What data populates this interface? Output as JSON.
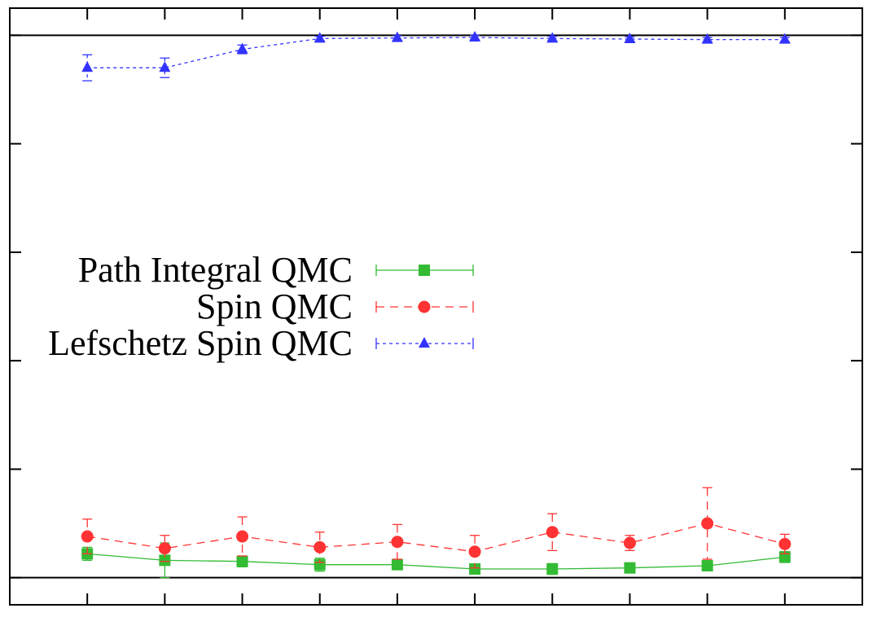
{
  "chart_data": {
    "type": "line",
    "title": "",
    "xlabel": "",
    "ylabel": "",
    "grid": false,
    "x_tick_count": 10,
    "y_tick_count": 6,
    "xlim": [
      0,
      11
    ],
    "ylim": [
      -0.25,
      5.25
    ],
    "x": [
      1,
      2,
      3,
      4,
      5,
      6,
      7,
      8,
      9,
      10
    ],
    "reference_lines": [
      0,
      5
    ],
    "legend_position": "center-left",
    "series": [
      {
        "name": "Path Integral QMC",
        "color": "#33bb33",
        "marker": "square",
        "line_style": "solid",
        "values": [
          0.22,
          0.16,
          0.15,
          0.12,
          0.12,
          0.08,
          0.08,
          0.09,
          0.11,
          0.19
        ],
        "errors": [
          0.06,
          0.16,
          0.05,
          0.06,
          0.04,
          0.03,
          0.05,
          0.03,
          0.03,
          0.05
        ]
      },
      {
        "name": "Spin QMC",
        "color": "#ff3333",
        "marker": "circle",
        "line_style": "dashed",
        "values": [
          0.38,
          0.27,
          0.38,
          0.28,
          0.33,
          0.24,
          0.42,
          0.32,
          0.5,
          0.31
        ],
        "errors": [
          0.16,
          0.12,
          0.18,
          0.14,
          0.16,
          0.15,
          0.17,
          0.07,
          0.33,
          0.09
        ]
      },
      {
        "name": "Lefschetz Spin QMC",
        "color": "#3333ff",
        "marker": "triangle",
        "line_style": "dotted",
        "values": [
          4.7,
          4.7,
          4.87,
          4.97,
          4.975,
          4.98,
          4.97,
          4.965,
          4.96,
          4.96
        ],
        "errors": [
          0.12,
          0.09,
          0.04,
          0.02,
          0.02,
          0.02,
          0.02,
          0.02,
          0.02,
          0.02
        ]
      }
    ]
  }
}
